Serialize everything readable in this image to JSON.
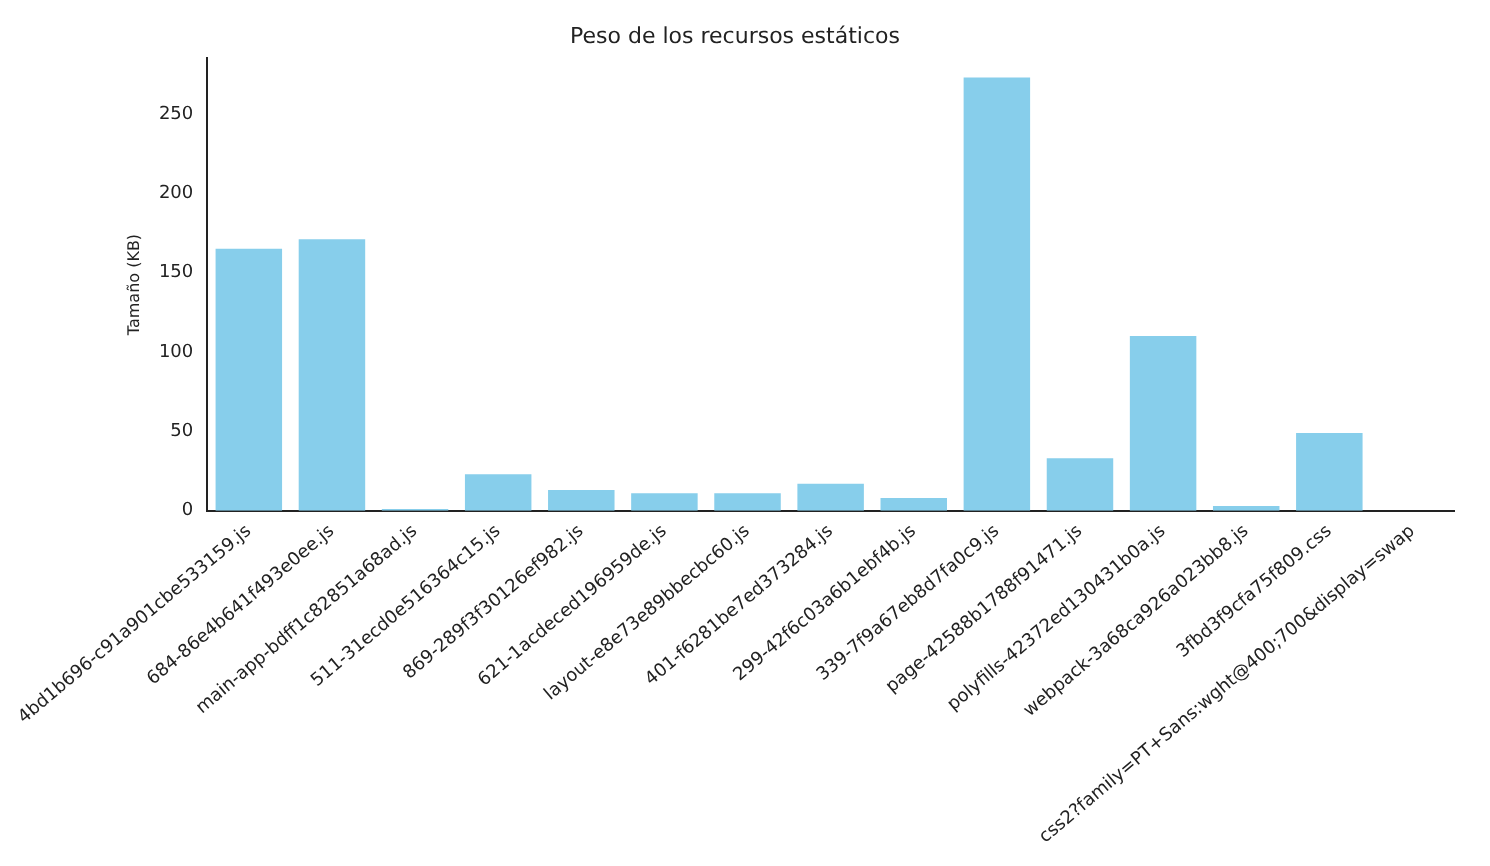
{
  "chart_data": {
    "type": "bar",
    "title": "Peso de los recursos estáticos",
    "ylabel": "Tamaño (KB)",
    "categories": [
      "4bd1b696-c91a901cbe533159.js",
      "684-86e4b641f493e0ee.js",
      "main-app-bdff1c82851a68ad.js",
      "511-31ecd0e516364c15.js",
      "869-289f3f30126ef982.js",
      "621-1acdeced196959de.js",
      "layout-e8e73e89bbecbc60.js",
      "401-f6281be7ed373284.js",
      "299-42f6c03a6b1ebf4b.js",
      "339-7f9a67eb8d7fa0c9.js",
      "page-42588b1788f91471.js",
      "polyfills-42372ed130431b0a.js",
      "webpack-3a68ca926a023bb8.js",
      "3fbd3f9cfa75f809.css",
      "css2?family=PT+Sans:wght@400;700&display=swap"
    ],
    "values": [
      165,
      171,
      1,
      23,
      13,
      11,
      11,
      17,
      8,
      273,
      33,
      110,
      3,
      49,
      null
    ],
    "color": "#87ceeb",
    "ylim": [
      0,
      285
    ],
    "yticks": [
      0,
      50,
      100,
      150,
      200,
      250
    ],
    "grid": false,
    "legend": false
  }
}
